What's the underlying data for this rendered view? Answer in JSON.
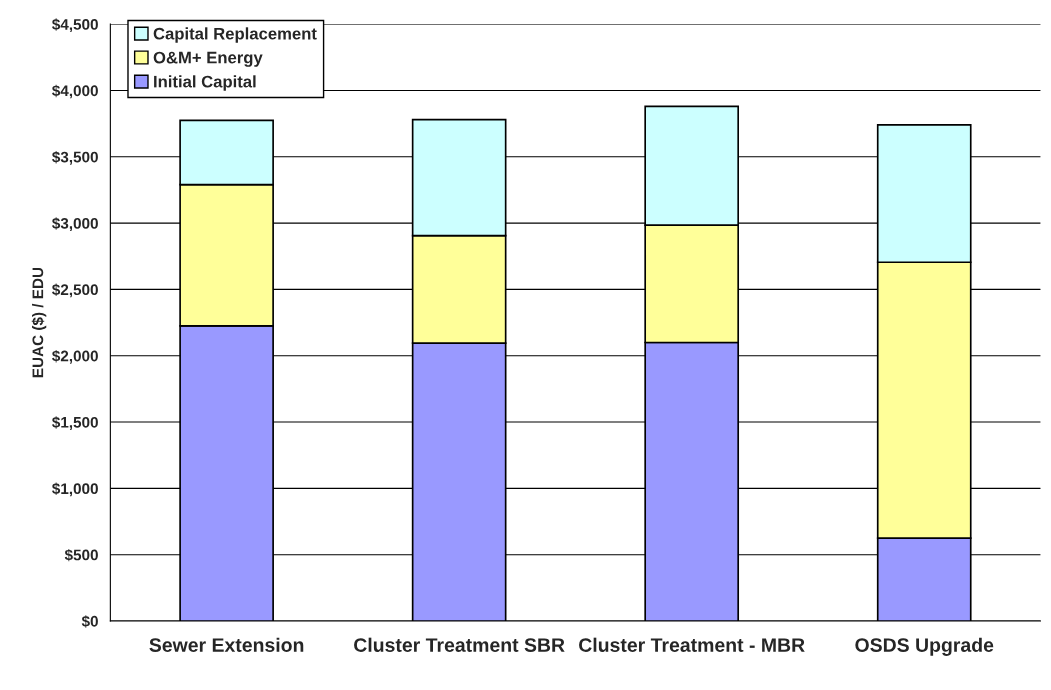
{
  "chart_data": {
    "type": "bar",
    "stacked": true,
    "ylabel": "EUAC ($) / EDU",
    "categories": [
      "Sewer Extension",
      "Cluster Treatment SBR",
      "Cluster Treatment - MBR",
      "OSDS Upgrade"
    ],
    "series": [
      {
        "name": "Initial Capital",
        "color": "#9999ff",
        "values": [
          2225,
          2095,
          2100,
          625
        ]
      },
      {
        "name": "O&M+ Energy",
        "color": "#ffff99",
        "values": [
          1065,
          810,
          885,
          2080
        ]
      },
      {
        "name": "Capital Replacement",
        "color": "#ccffff",
        "values": [
          485,
          875,
          895,
          1035
        ]
      }
    ],
    "ylim": [
      0,
      4500
    ],
    "yticks": [
      {
        "value": 0,
        "label": "$0"
      },
      {
        "value": 500,
        "label": "$500"
      },
      {
        "value": 1000,
        "label": "$1,000"
      },
      {
        "value": 1500,
        "label": "$1,500"
      },
      {
        "value": 2000,
        "label": "$2,000"
      },
      {
        "value": 2500,
        "label": "$2,500"
      },
      {
        "value": 3000,
        "label": "$3,000"
      },
      {
        "value": 3500,
        "label": "$3,500"
      },
      {
        "value": 4000,
        "label": "$4,000"
      },
      {
        "value": 4500,
        "label": "$4,500"
      }
    ],
    "grid": "y",
    "legend": "top left"
  }
}
